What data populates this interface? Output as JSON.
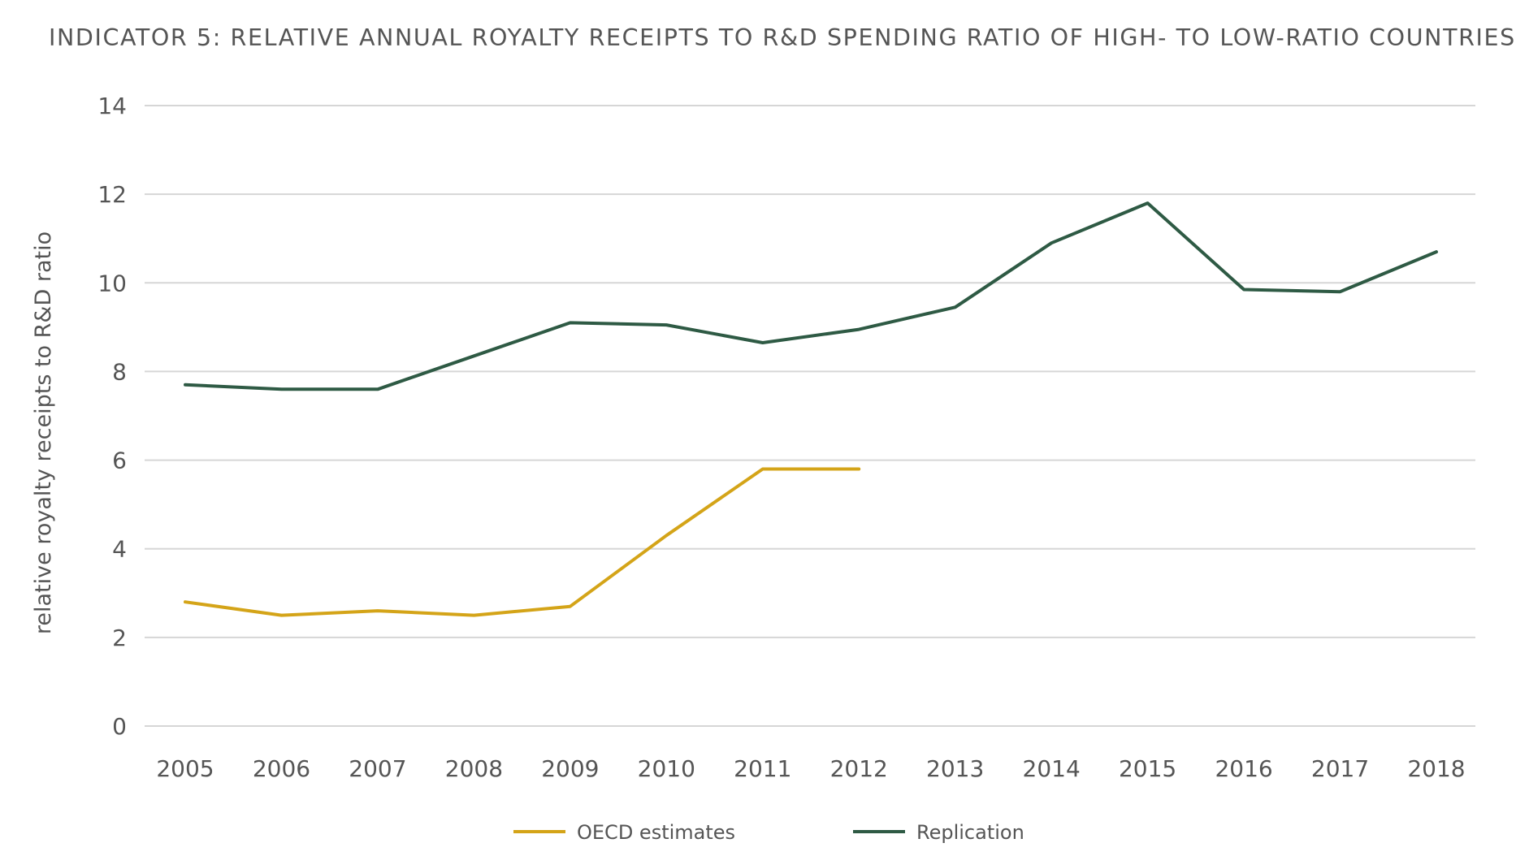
{
  "chart_data": {
    "type": "line",
    "title": "INDICATOR 5: RELATIVE ANNUAL ROYALTY RECEIPTS TO R&D SPENDING RATIO OF HIGH- TO LOW-RATIO COUNTRIES",
    "xlabel": "",
    "ylabel": "relative royalty receipts to R&D ratio",
    "x": [
      "2005",
      "2006",
      "2007",
      "2008",
      "2009",
      "2010",
      "2011",
      "2012",
      "2013",
      "2014",
      "2015",
      "2016",
      "2017",
      "2018"
    ],
    "yticks": [
      0,
      2,
      4,
      6,
      8,
      10,
      12,
      14
    ],
    "ylim": [
      0,
      14
    ],
    "grid": true,
    "legend_position": "bottom",
    "series": [
      {
        "name": "OECD estimates",
        "color": "#d4a418",
        "values": [
          2.8,
          2.5,
          2.6,
          2.5,
          2.7,
          4.3,
          5.8,
          5.8,
          null,
          null,
          null,
          null,
          null,
          null
        ]
      },
      {
        "name": "Replication",
        "color": "#2e5a44",
        "values": [
          7.7,
          7.6,
          7.6,
          8.35,
          9.1,
          9.05,
          8.65,
          8.95,
          9.45,
          10.9,
          11.8,
          9.85,
          9.8,
          10.7
        ]
      }
    ]
  }
}
